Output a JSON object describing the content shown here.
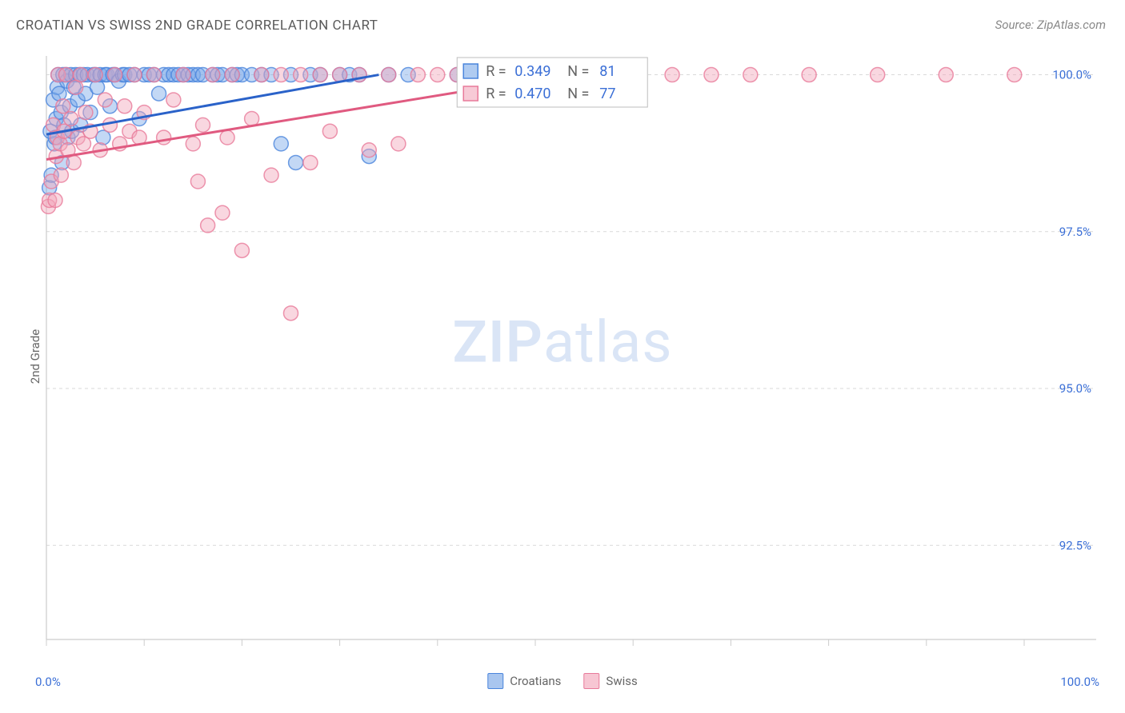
{
  "title": "CROATIAN VS SWISS 2ND GRADE CORRELATION CHART",
  "source_label": "Source: ZipAtlas.com",
  "watermark_zip": "ZIP",
  "watermark_atlas": "atlas",
  "ylabel": "2nd Grade",
  "chart": {
    "type": "scatter",
    "background_color": "#ffffff",
    "grid_color": "#d9d9d9",
    "grid_dash": "4 4",
    "axis_color": "#cccccc",
    "tick_color": "#cccccc",
    "xlim": [
      0,
      100
    ],
    "ylim": [
      91.0,
      100.3
    ],
    "x_tick_step": 10,
    "x_tick_labels": {
      "0": "0.0%",
      "100": "100.0%"
    },
    "y_ticks": [
      92.5,
      95.0,
      97.5,
      100.0
    ],
    "y_tick_labels": [
      "92.5%",
      "95.0%",
      "97.5%",
      "100.0%"
    ],
    "y_tick_label_color": "#3b6fd6",
    "y_tick_fontsize": 15,
    "marker_radius": 9,
    "marker_opacity": 0.45,
    "marker_stroke_width": 1.5,
    "trend_line_width": 3,
    "series": [
      {
        "name": "Croatians",
        "fill_color": "#7aa8e8",
        "stroke_color": "#4a85dc",
        "line_color": "#2a62c9",
        "R": 0.349,
        "N": 81,
        "trend": {
          "x1": 0,
          "y1": 99.05,
          "x2": 34,
          "y2": 100.0
        },
        "points": [
          [
            0.3,
            98.2
          ],
          [
            0.4,
            99.1
          ],
          [
            0.5,
            98.4
          ],
          [
            0.7,
            99.6
          ],
          [
            0.8,
            98.9
          ],
          [
            0.9,
            99.0
          ],
          [
            1.0,
            99.3
          ],
          [
            1.1,
            99.8
          ],
          [
            1.2,
            100.0
          ],
          [
            1.3,
            99.7
          ],
          [
            1.5,
            99.4
          ],
          [
            1.6,
            98.6
          ],
          [
            1.7,
            100.0
          ],
          [
            1.8,
            99.2
          ],
          [
            2.0,
            100.0
          ],
          [
            2.1,
            99.9
          ],
          [
            2.2,
            99.0
          ],
          [
            2.4,
            99.5
          ],
          [
            2.5,
            100.0
          ],
          [
            2.6,
            99.1
          ],
          [
            2.8,
            99.8
          ],
          [
            3.0,
            100.0
          ],
          [
            3.2,
            99.6
          ],
          [
            3.4,
            100.0
          ],
          [
            3.5,
            99.2
          ],
          [
            3.8,
            100.0
          ],
          [
            4.0,
            99.7
          ],
          [
            4.2,
            100.0
          ],
          [
            4.5,
            99.4
          ],
          [
            4.8,
            100.0
          ],
          [
            5.0,
            100.0
          ],
          [
            5.2,
            99.8
          ],
          [
            5.5,
            100.0
          ],
          [
            5.8,
            99.0
          ],
          [
            6.0,
            100.0
          ],
          [
            6.2,
            100.0
          ],
          [
            6.5,
            99.5
          ],
          [
            6.8,
            100.0
          ],
          [
            7.0,
            100.0
          ],
          [
            7.4,
            99.9
          ],
          [
            7.8,
            100.0
          ],
          [
            8.0,
            100.0
          ],
          [
            8.5,
            100.0
          ],
          [
            9.0,
            100.0
          ],
          [
            9.5,
            99.3
          ],
          [
            10.0,
            100.0
          ],
          [
            10.5,
            100.0
          ],
          [
            11.0,
            100.0
          ],
          [
            11.5,
            99.7
          ],
          [
            12.0,
            100.0
          ],
          [
            12.5,
            100.0
          ],
          [
            13.0,
            100.0
          ],
          [
            13.5,
            100.0
          ],
          [
            14.0,
            100.0
          ],
          [
            14.5,
            100.0
          ],
          [
            15.0,
            100.0
          ],
          [
            15.5,
            100.0
          ],
          [
            16.0,
            100.0
          ],
          [
            17.0,
            100.0
          ],
          [
            17.5,
            100.0
          ],
          [
            18.0,
            100.0
          ],
          [
            19.0,
            100.0
          ],
          [
            19.5,
            100.0
          ],
          [
            20.0,
            100.0
          ],
          [
            21.0,
            100.0
          ],
          [
            22.0,
            100.0
          ],
          [
            23.0,
            100.0
          ],
          [
            24.0,
            98.9
          ],
          [
            25.0,
            100.0
          ],
          [
            25.5,
            98.6
          ],
          [
            27.0,
            100.0
          ],
          [
            28.0,
            100.0
          ],
          [
            30.0,
            100.0
          ],
          [
            31.0,
            100.0
          ],
          [
            32.0,
            100.0
          ],
          [
            33.0,
            98.7
          ],
          [
            35.0,
            100.0
          ],
          [
            37.0,
            100.0
          ],
          [
            42.0,
            100.0
          ],
          [
            45.0,
            100.0
          ],
          [
            48.0,
            100.0
          ]
        ]
      },
      {
        "name": "Swiss",
        "fill_color": "#f2a6bb",
        "stroke_color": "#e87a9a",
        "line_color": "#e05a80",
        "R": 0.47,
        "N": 77,
        "trend": {
          "x1": 0,
          "y1": 98.65,
          "x2": 53,
          "y2": 100.0
        },
        "points": [
          [
            0.2,
            97.9
          ],
          [
            0.3,
            98.0
          ],
          [
            0.5,
            98.3
          ],
          [
            0.7,
            99.2
          ],
          [
            0.9,
            98.0
          ],
          [
            1.0,
            98.7
          ],
          [
            1.1,
            99.0
          ],
          [
            1.2,
            100.0
          ],
          [
            1.4,
            98.9
          ],
          [
            1.5,
            98.4
          ],
          [
            1.7,
            99.5
          ],
          [
            1.8,
            99.1
          ],
          [
            2.0,
            100.0
          ],
          [
            2.2,
            98.8
          ],
          [
            2.5,
            99.3
          ],
          [
            2.8,
            98.6
          ],
          [
            3.0,
            99.8
          ],
          [
            3.2,
            99.0
          ],
          [
            3.5,
            100.0
          ],
          [
            3.8,
            98.9
          ],
          [
            4.0,
            99.4
          ],
          [
            4.5,
            99.1
          ],
          [
            5.0,
            100.0
          ],
          [
            5.5,
            98.8
          ],
          [
            6.0,
            99.6
          ],
          [
            6.5,
            99.2
          ],
          [
            7.0,
            100.0
          ],
          [
            7.5,
            98.9
          ],
          [
            8.0,
            99.5
          ],
          [
            8.5,
            99.1
          ],
          [
            9.0,
            100.0
          ],
          [
            9.5,
            99.0
          ],
          [
            10.0,
            99.4
          ],
          [
            11.0,
            100.0
          ],
          [
            12.0,
            99.0
          ],
          [
            13.0,
            99.6
          ],
          [
            14.0,
            100.0
          ],
          [
            15.0,
            98.9
          ],
          [
            15.5,
            98.3
          ],
          [
            16.0,
            99.2
          ],
          [
            16.5,
            97.6
          ],
          [
            17.0,
            100.0
          ],
          [
            18.0,
            97.8
          ],
          [
            18.5,
            99.0
          ],
          [
            19.0,
            100.0
          ],
          [
            20.0,
            97.2
          ],
          [
            21.0,
            99.3
          ],
          [
            22.0,
            100.0
          ],
          [
            23.0,
            98.4
          ],
          [
            24.0,
            100.0
          ],
          [
            25.0,
            96.2
          ],
          [
            26.0,
            100.0
          ],
          [
            27.0,
            98.6
          ],
          [
            28.0,
            100.0
          ],
          [
            29.0,
            99.1
          ],
          [
            30.0,
            100.0
          ],
          [
            32.0,
            100.0
          ],
          [
            33.0,
            98.8
          ],
          [
            35.0,
            100.0
          ],
          [
            36.0,
            98.9
          ],
          [
            38.0,
            100.0
          ],
          [
            40.0,
            100.0
          ],
          [
            42.0,
            100.0
          ],
          [
            44.0,
            100.0
          ],
          [
            47.0,
            100.0
          ],
          [
            50.0,
            100.0
          ],
          [
            52.0,
            100.0
          ],
          [
            55.0,
            100.0
          ],
          [
            58.0,
            100.0
          ],
          [
            60.0,
            100.0
          ],
          [
            64.0,
            100.0
          ],
          [
            68.0,
            100.0
          ],
          [
            72.0,
            100.0
          ],
          [
            78.0,
            100.0
          ],
          [
            85.0,
            100.0
          ],
          [
            92.0,
            100.0
          ],
          [
            99.0,
            100.0
          ]
        ]
      }
    ]
  },
  "legend": {
    "box": {
      "border_color": "#bcbcbc",
      "bg_color": "#ffffff",
      "fontsize": 18
    },
    "r_label": "R =",
    "n_label": "N =",
    "value_color": "#3b6fd6",
    "label_color": "#666666"
  },
  "bottom_legend": {
    "items": [
      {
        "label": "Croatians",
        "fill": "#a9c6ef",
        "stroke": "#4a85dc"
      },
      {
        "label": "Swiss",
        "fill": "#f7c6d3",
        "stroke": "#e87a9a"
      }
    ]
  },
  "x_axis_labels": {
    "left": "0.0%",
    "right": "100.0%"
  }
}
